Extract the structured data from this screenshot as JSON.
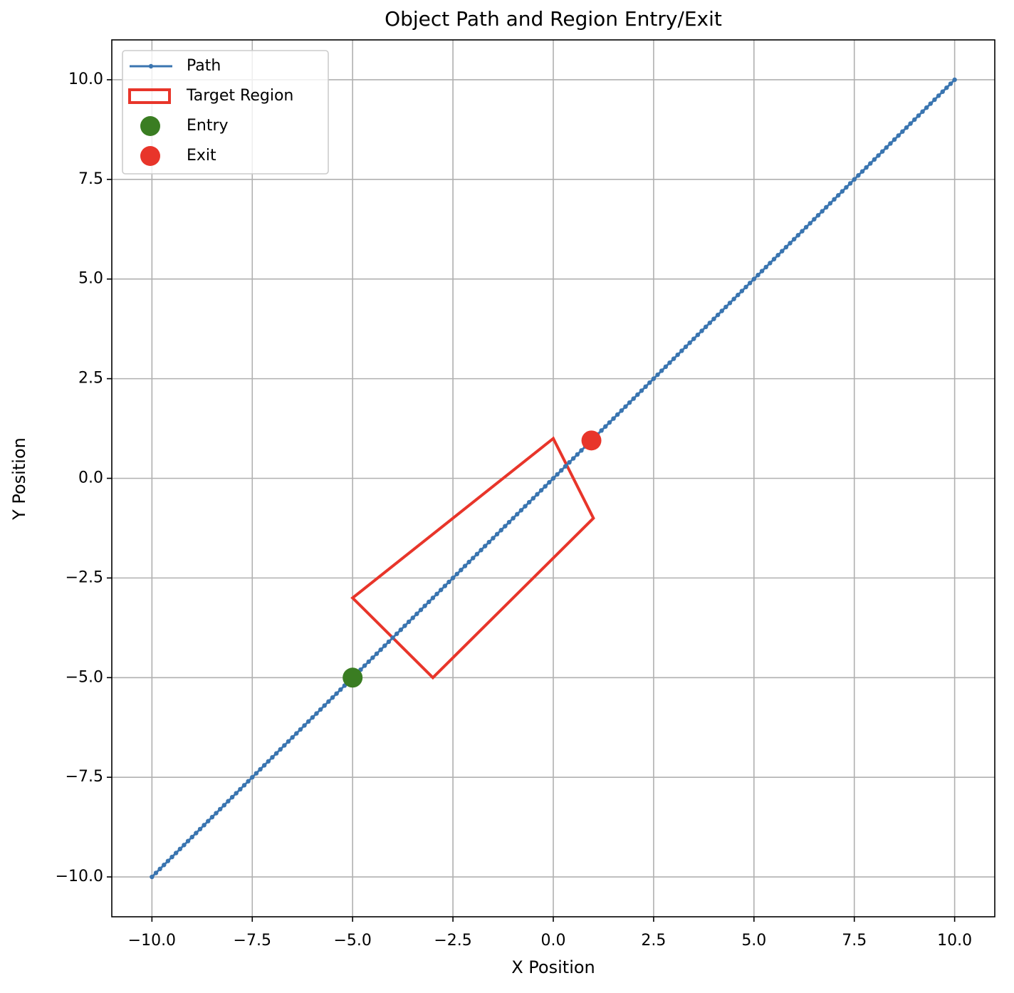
{
  "chart_data": {
    "type": "line",
    "title": "Object Path and Region Entry/Exit",
    "xlabel": "X Position",
    "ylabel": "Y Position",
    "xlim": [
      -11,
      11
    ],
    "ylim": [
      -11,
      11
    ],
    "xticks": [
      {
        "value": -10,
        "label": "−10.0"
      },
      {
        "value": -7.5,
        "label": "−7.5"
      },
      {
        "value": -5,
        "label": "−5.0"
      },
      {
        "value": -2.5,
        "label": "−2.5"
      },
      {
        "value": 0,
        "label": "0.0"
      },
      2.5,
      {
        "value": 5,
        "label": "5.0"
      },
      7.5,
      {
        "value": 10,
        "label": "10.0"
      }
    ],
    "yticks": [
      {
        "value": -10,
        "label": "−10.0"
      },
      {
        "value": -7.5,
        "label": "−7.5"
      },
      {
        "value": -5,
        "label": "−5.0"
      },
      {
        "value": -2.5,
        "label": "−2.5"
      },
      {
        "value": 0,
        "label": "0.0"
      },
      2.5,
      {
        "value": 5,
        "label": "5.0"
      },
      7.5,
      {
        "value": 10,
        "label": "10.0"
      }
    ],
    "grid": true,
    "legend": "upper left",
    "series": [
      {
        "name": "Path",
        "color": "#3a75b0",
        "x": [
          -10,
          -9.9,
          -9.8,
          -9.7,
          -9.6,
          -9.5,
          -9.4,
          -9.3,
          -9.2,
          -9.1,
          -9,
          -8.9,
          -8.8,
          -8.7,
          -8.6,
          -8.5,
          -8.4,
          -8.3,
          -8.2,
          -8.1,
          -8,
          -7.9,
          -7.8,
          -7.7,
          -7.6,
          -7.5,
          -7.4,
          -7.3,
          -7.2,
          -7.1,
          -7,
          -6.9,
          -6.8,
          -6.7,
          -6.6,
          -6.5,
          -6.4,
          -6.3,
          -6.2,
          -6.1,
          -6,
          -5.9,
          -5.8,
          -5.7,
          -5.6,
          -5.5,
          -5.4,
          -5.3,
          -5.2,
          -5.1,
          -5,
          -4.9,
          -4.8,
          -4.7,
          -4.6,
          -4.5,
          -4.4,
          -4.3,
          -4.2,
          -4.1,
          -4,
          -3.9,
          -3.8,
          -3.7,
          -3.6,
          -3.5,
          -3.4,
          -3.3,
          -3.2,
          -3.1,
          -3,
          -2.9,
          -2.8,
          -2.7,
          -2.6,
          -2.5,
          -2.4,
          -2.3,
          -2.2,
          -2.1,
          -2,
          -1.9,
          -1.8,
          -1.7,
          -1.6,
          -1.5,
          -1.4,
          -1.3,
          -1.2,
          -1.1,
          -1,
          -0.9,
          -0.8,
          -0.7,
          -0.6,
          -0.5,
          -0.4,
          -0.3,
          -0.2,
          -0.1,
          0,
          0.1,
          0.2,
          0.3,
          0.4,
          0.5,
          0.6,
          0.7,
          0.8,
          0.9,
          1,
          1.1,
          1.2,
          1.3,
          1.4,
          1.5,
          1.6,
          1.7,
          1.8,
          1.9,
          2,
          2.1,
          2.2,
          2.3,
          2.4,
          2.5,
          2.6,
          2.7,
          2.8,
          2.9,
          3,
          3.1,
          3.2,
          3.3,
          3.4,
          3.5,
          3.6,
          3.7,
          3.8,
          3.9,
          4,
          4.1,
          4.2,
          4.3,
          4.4,
          4.5,
          4.6,
          4.7,
          4.8,
          4.9,
          5,
          5.1,
          5.2,
          5.3,
          5.4,
          5.5,
          5.6,
          5.7,
          5.8,
          5.9,
          6,
          6.1,
          6.2,
          6.3,
          6.4,
          6.5,
          6.6,
          6.7,
          6.8,
          6.9,
          7,
          7.1,
          7.2,
          7.3,
          7.4,
          7.5,
          7.6,
          7.7,
          7.8,
          7.9,
          8,
          8.1,
          8.2,
          8.3,
          8.4,
          8.5,
          8.6,
          8.7,
          8.8,
          8.9,
          9,
          9.1,
          9.2,
          9.3,
          9.4,
          9.5,
          9.6,
          9.7,
          9.8,
          9.9,
          10
        ],
        "values": [
          -10,
          -9.9,
          -9.8,
          -9.7,
          -9.6,
          -9.5,
          -9.4,
          -9.3,
          -9.2,
          -9.1,
          -9,
          -8.9,
          -8.8,
          -8.7,
          -8.6,
          -8.5,
          -8.4,
          -8.3,
          -8.2,
          -8.1,
          -8,
          -7.9,
          -7.8,
          -7.7,
          -7.6,
          -7.5,
          -7.4,
          -7.3,
          -7.2,
          -7.1,
          -7,
          -6.9,
          -6.8,
          -6.7,
          -6.6,
          -6.5,
          -6.4,
          -6.3,
          -6.2,
          -6.1,
          -6,
          -5.9,
          -5.8,
          -5.7,
          -5.6,
          -5.5,
          -5.4,
          -5.3,
          -5.2,
          -5.1,
          -5,
          -4.9,
          -4.8,
          -4.7,
          -4.6,
          -4.5,
          -4.4,
          -4.3,
          -4.2,
          -4.1,
          -4,
          -3.9,
          -3.8,
          -3.7,
          -3.6,
          -3.5,
          -3.4,
          -3.3,
          -3.2,
          -3.1,
          -3,
          -2.9,
          -2.8,
          -2.7,
          -2.6,
          -2.5,
          -2.4,
          -2.3,
          -2.2,
          -2.1,
          -2,
          -1.9,
          -1.8,
          -1.7,
          -1.6,
          -1.5,
          -1.4,
          -1.3,
          -1.2,
          -1.1,
          -1,
          -0.9,
          -0.8,
          -0.7,
          -0.6,
          -0.5,
          -0.4,
          -0.3,
          -0.2,
          -0.1,
          0,
          0.1,
          0.2,
          0.3,
          0.4,
          0.5,
          0.6,
          0.7,
          0.8,
          0.9,
          1,
          1.1,
          1.2,
          1.3,
          1.4,
          1.5,
          1.6,
          1.7,
          1.8,
          1.9,
          2,
          2.1,
          2.2,
          2.3,
          2.4,
          2.5,
          2.6,
          2.7,
          2.8,
          2.9,
          3,
          3.1,
          3.2,
          3.3,
          3.4,
          3.5,
          3.6,
          3.7,
          3.8,
          3.9,
          4,
          4.1,
          4.2,
          4.3,
          4.4,
          4.5,
          4.6,
          4.7,
          4.8,
          4.9,
          5,
          5.1,
          5.2,
          5.3,
          5.4,
          5.5,
          5.6,
          5.7,
          5.8,
          5.9,
          6,
          6.1,
          6.2,
          6.3,
          6.4,
          6.5,
          6.6,
          6.7,
          6.8,
          6.9,
          7,
          7.1,
          7.2,
          7.3,
          7.4,
          7.5,
          7.6,
          7.7,
          7.8,
          7.9,
          8,
          8.1,
          8.2,
          8.3,
          8.4,
          8.5,
          8.6,
          8.7,
          8.8,
          8.9,
          9,
          9.1,
          9.2,
          9.3,
          9.4,
          9.5,
          9.6,
          9.7,
          9.8,
          9.9,
          10
        ]
      }
    ],
    "region": {
      "name": "Target Region",
      "color": "#e8352a",
      "x": [
        -5,
        0,
        1,
        -3
      ],
      "y": [
        -3,
        1,
        -1,
        -5
      ]
    },
    "points": [
      {
        "name": "Entry",
        "color": "#3a7d22",
        "x": -5,
        "y": -5
      },
      {
        "name": "Exit",
        "color": "#e8352a",
        "x": 0.95,
        "y": 0.95
      }
    ]
  }
}
